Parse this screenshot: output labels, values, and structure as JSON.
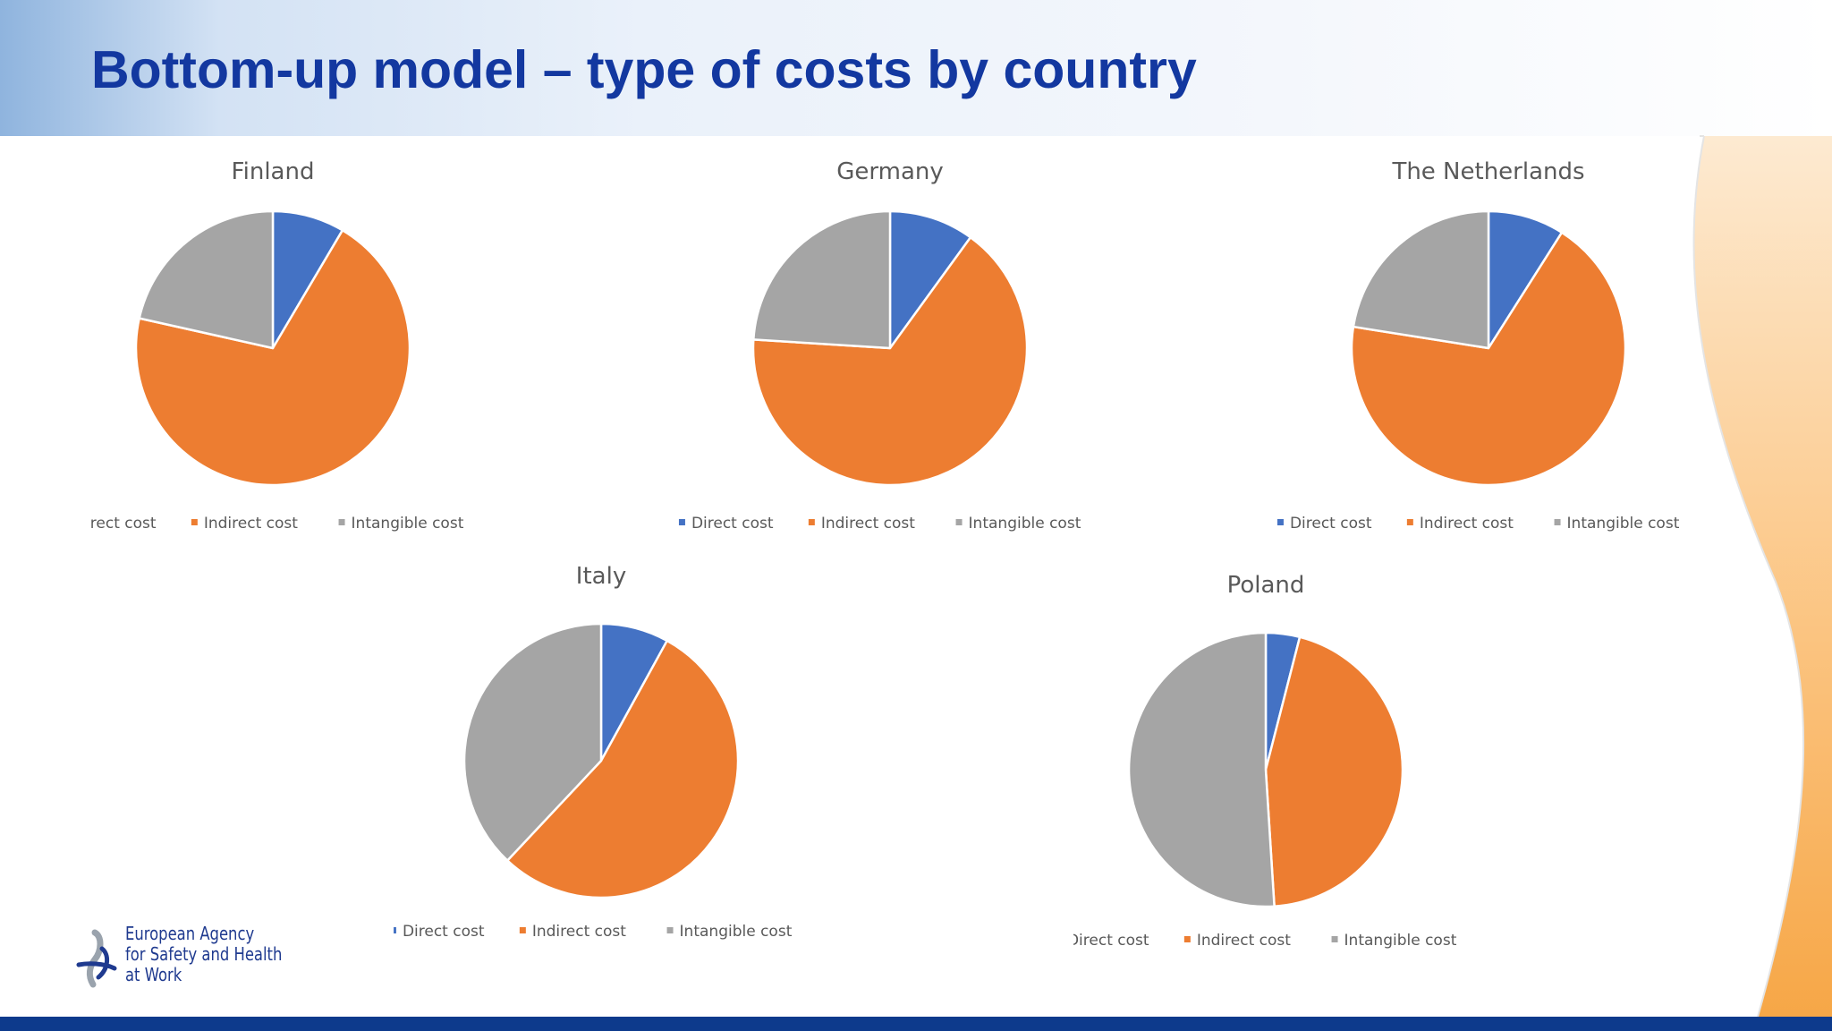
{
  "slide": {
    "title": "Bottom-up model – type of costs by country"
  },
  "colors": {
    "direct": "#4472c4",
    "indirect": "#ed7d31",
    "intangible": "#a5a5a5",
    "title": "#1338a0",
    "bottom_bar": "#0d3a8c",
    "accent_orange": "#f7a94a"
  },
  "legend_labels": [
    "Direct cost",
    "Indirect cost",
    "Intangible cost"
  ],
  "chart_data": [
    {
      "type": "pie",
      "title": "Finland",
      "categories": [
        "Direct cost",
        "Indirect cost",
        "Intangible cost"
      ],
      "values": [
        8.5,
        70,
        21.5
      ],
      "legend": "bottom"
    },
    {
      "type": "pie",
      "title": "Germany",
      "categories": [
        "Direct cost",
        "Indirect cost",
        "Intangible cost"
      ],
      "values": [
        10,
        66,
        24
      ],
      "legend": "bottom"
    },
    {
      "type": "pie",
      "title": "The Netherlands",
      "categories": [
        "Direct cost",
        "Indirect cost",
        "Intangible cost"
      ],
      "values": [
        9,
        68.5,
        22.5
      ],
      "legend": "bottom"
    },
    {
      "type": "pie",
      "title": "Italy",
      "categories": [
        "Direct cost",
        "Indirect cost",
        "Intangible cost"
      ],
      "values": [
        8,
        54,
        38
      ],
      "legend": "bottom"
    },
    {
      "type": "pie",
      "title": "Poland",
      "categories": [
        "Direct cost",
        "Indirect cost",
        "Intangible cost"
      ],
      "values": [
        4,
        45,
        51
      ],
      "legend": "bottom"
    }
  ],
  "logo": {
    "lines": [
      "European Agency",
      "for Safety and Health",
      "at Work"
    ]
  }
}
